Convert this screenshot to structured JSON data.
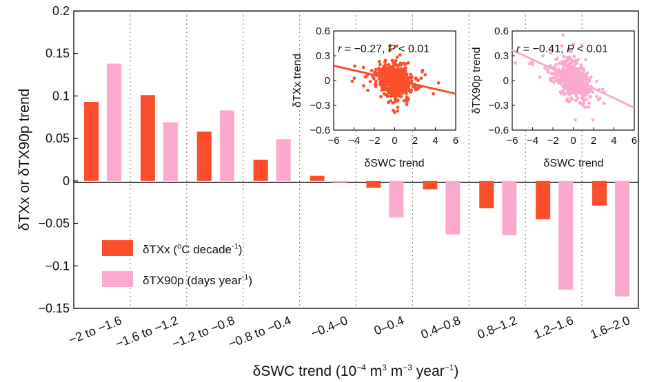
{
  "chart_data": [
    {
      "type": "bar",
      "categories": [
        "−2 to −1.6",
        "−1.6 to −1.2",
        "−1.2 to −0.8",
        "−0.8 to −0.4",
        "−0.4–0",
        "0–0.4",
        "0.4–0.8",
        "0.8–1.2",
        "1.2–1.6",
        "1.6–2.0"
      ],
      "series": [
        {
          "name": "δTXx (°C decade⁻¹)",
          "color": "#fc4e2a",
          "values": [
            0.093,
            0.101,
            0.058,
            0.025,
            0.006,
            -0.008,
            -0.01,
            -0.032,
            -0.045,
            -0.029
          ]
        },
        {
          "name": "δTX90p (days year⁻¹)",
          "color": "#fba9cf",
          "values": [
            0.138,
            0.069,
            0.083,
            0.049,
            -0.002,
            -0.043,
            -0.063,
            -0.064,
            -0.128,
            -0.136
          ]
        }
      ],
      "xlabel": "δSWC trend (10⁻⁴ m³ m⁻³ year⁻¹)",
      "ylabel": "δTXx or δTX90p trend",
      "ylim": [
        -0.15,
        0.2
      ],
      "yticks": [
        "−0.15",
        "−0.1",
        "−0.05",
        "0",
        "0.05",
        "0.1",
        "0.15",
        "0.2"
      ],
      "legend": "bottom-left",
      "legend_labels": {
        "s1_main": "δTXx (",
        "s1_sup1": "o",
        "s1_mid": "C decade",
        "s1_sup2": "-1",
        "s1_end": ")",
        "s2_main": "δTX90p (days year",
        "s2_sup": "-1",
        "s2_end": ")"
      },
      "xlabel_parts": {
        "a": "δSWC trend (10",
        "b": "−4",
        "c": " m",
        "d": "3",
        "e": " m",
        "f": "−3",
        "g": " year",
        "h": "−1",
        "i": ")"
      }
    },
    {
      "type": "scatter",
      "xlabel": "δSWC trend",
      "ylabel": "δTXx trend",
      "xlim": [
        -6,
        6
      ],
      "ylim": [
        -0.6,
        0.6
      ],
      "xticks": [
        "−6",
        "−4",
        "−2",
        "0",
        "2",
        "4",
        "6"
      ],
      "yticks": [
        "−0.6",
        "−0.3",
        "0",
        "0.3",
        "0.6"
      ],
      "color": "#fc4e2a",
      "annotation": {
        "r": "r",
        "eq": " = −0.27, ",
        "p": "P",
        "tail": " < 0.01"
      },
      "fit": {
        "x": [
          -6,
          6
        ],
        "y": [
          0.18,
          -0.16
        ]
      }
    },
    {
      "type": "scatter",
      "xlabel": "δSWC trend",
      "ylabel": "δTX90p trend",
      "xlim": [
        -6,
        6
      ],
      "ylim": [
        -0.6,
        0.6
      ],
      "xticks": [
        "−6",
        "−4",
        "−2",
        "0",
        "2",
        "4",
        "6"
      ],
      "yticks": [
        "−0.6",
        "−0.3",
        "0",
        "0.3",
        "0.6"
      ],
      "color": "#fba9cf",
      "annotation": {
        "r": "r",
        "eq": " = −0.41, ",
        "p": "P",
        "tail": " < 0.01"
      },
      "fit": {
        "x": [
          -6,
          6
        ],
        "y": [
          0.37,
          -0.33
        ]
      }
    }
  ]
}
